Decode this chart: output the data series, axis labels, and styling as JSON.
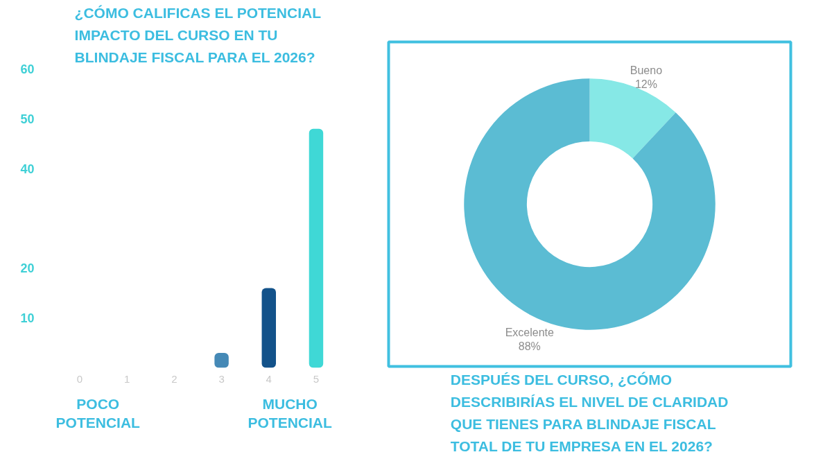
{
  "chart_data": [
    {
      "type": "bar",
      "title": "¿CÓMO CALIFICAS EL POTENCIAL\nIMPACTO DEL CURSO EN TU\nBLINDAJE FISCAL PARA EL 2026?",
      "categories": [
        "0",
        "1",
        "2",
        "3",
        "4",
        "5"
      ],
      "values": [
        0,
        0,
        0,
        3,
        16,
        48
      ],
      "colors": [
        "#4589b6",
        "#4589b6",
        "#4589b6",
        "#4589b6",
        "#13528a",
        "#3fd8d6"
      ],
      "ylim": [
        0,
        60
      ],
      "yticks": [
        10,
        20,
        40,
        50,
        60
      ],
      "grid": false,
      "annotations": [
        "POCO\nPOTENCIAL",
        "MUCHO\nPOTENCIAL"
      ]
    },
    {
      "type": "donut",
      "title": "DESPUÉS DEL CURSO, ¿CÓMO\nDESCRIBIRÍAS EL NIVEL DE CLARIDAD\nQUE TIENES PARA BLINDAJE FISCAL\nTOTAL DE TU EMPRESA EN EL 2026?",
      "categories": [
        "Bueno",
        "Excelente"
      ],
      "values": [
        12,
        88
      ],
      "colors": [
        "#86e8e6",
        "#5bbcd3"
      ],
      "value_labels": [
        "12%",
        "88%"
      ]
    }
  ]
}
